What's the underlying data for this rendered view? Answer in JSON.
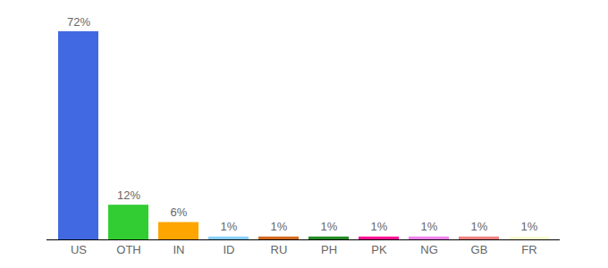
{
  "chart_data": {
    "type": "bar",
    "categories": [
      "US",
      "OTH",
      "IN",
      "ID",
      "RU",
      "PH",
      "PK",
      "NG",
      "GB",
      "FR"
    ],
    "values": [
      72,
      12,
      6,
      1,
      1,
      1,
      1,
      1,
      1,
      1
    ],
    "value_labels": [
      "72%",
      "12%",
      "6%",
      "1%",
      "1%",
      "1%",
      "1%",
      "1%",
      "1%",
      "1%"
    ],
    "colors": [
      "#4169e1",
      "#32cd32",
      "#ffa500",
      "#87cefa",
      "#d2691e",
      "#228b22",
      "#ff1493",
      "#ee82ee",
      "#f08080",
      "#fafad2"
    ],
    "data_labels": true,
    "tick_labels": "x"
  }
}
